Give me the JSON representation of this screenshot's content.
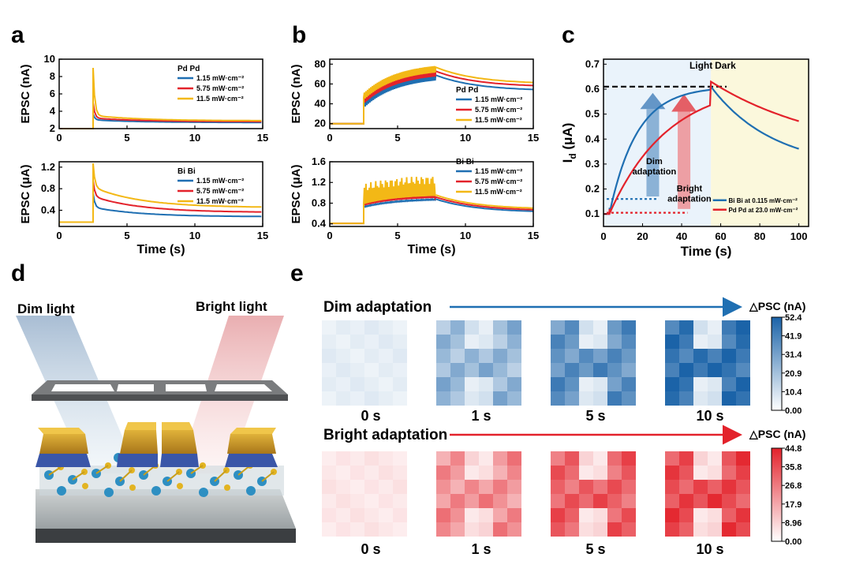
{
  "panels": {
    "a": "a",
    "b": "b",
    "c": "c",
    "d": "d",
    "e": "e"
  },
  "colors": {
    "blue": "#1f6fb2",
    "red": "#e3222b",
    "yellow": "#f3b816"
  },
  "chart_data": [
    {
      "id": "a-top",
      "type": "line",
      "xlim": [
        0,
        15
      ],
      "ylim": [
        2,
        10
      ],
      "xticks": [
        0,
        5,
        10,
        15
      ],
      "yticks": [
        2,
        4,
        6,
        8,
        10
      ],
      "ylabel": "EPSC (nA)",
      "xlabel": "",
      "legend_title": "Pd  Pd",
      "series": [
        {
          "name": "1.15 mW·cm⁻²",
          "pre": 1.95,
          "peak": 3.7,
          "plat": 3.0,
          "end": 2.7
        },
        {
          "name": "5.75 mW·cm⁻²",
          "pre": 1.95,
          "peak": 5.0,
          "plat": 3.2,
          "end": 2.8
        },
        {
          "name": "11.5 mW·cm⁻²",
          "pre": 1.95,
          "peak": 9.0,
          "plat": 3.5,
          "end": 2.9
        }
      ]
    },
    {
      "id": "a-bot",
      "type": "line",
      "xlim": [
        0,
        15
      ],
      "ylim": [
        0.1,
        1.3
      ],
      "xticks": [
        0,
        5,
        10,
        15
      ],
      "yticks": [
        0.4,
        0.8,
        1.2
      ],
      "ylabel": "EPSC (μA)",
      "xlabel": "Time (s)",
      "legend_title": "Bi  Bi",
      "series": [
        {
          "name": "1.15 mW·cm⁻²",
          "pre": 0.18,
          "peak": 0.72,
          "plat": 0.45,
          "end": 0.28
        },
        {
          "name": "5.75 mW·cm⁻²",
          "pre": 0.18,
          "peak": 0.95,
          "plat": 0.65,
          "end": 0.36
        },
        {
          "name": "11.5 mW·cm⁻²",
          "pre": 0.18,
          "peak": 1.27,
          "plat": 0.82,
          "end": 0.45
        }
      ]
    },
    {
      "id": "b-top",
      "type": "line",
      "xlim": [
        0,
        15
      ],
      "ylim": [
        15,
        85
      ],
      "xticks": [
        0,
        5,
        10,
        15
      ],
      "yticks": [
        20,
        40,
        60,
        80
      ],
      "ylabel": "EPSC (nA)",
      "xlabel": "",
      "legend_title": "Pd  Pd",
      "series": [
        {
          "name": "1.15 mW·cm⁻²",
          "pre": 20,
          "start": 38,
          "top": 69,
          "end": 53
        },
        {
          "name": "5.75 mW·cm⁻²",
          "pre": 20,
          "start": 42,
          "top": 73,
          "end": 57
        },
        {
          "name": "11.5 mW·cm⁻²",
          "pre": 20,
          "start": 46,
          "top": 77,
          "end": 60
        }
      ]
    },
    {
      "id": "b-bot",
      "type": "line",
      "xlim": [
        0,
        15
      ],
      "ylim": [
        0.35,
        1.6
      ],
      "xticks": [
        0,
        5,
        10,
        15
      ],
      "yticks": [
        0.4,
        0.8,
        1.2,
        1.6
      ],
      "ylabel": "EPSC (μA)",
      "xlabel": "Time (s)",
      "legend_title": "Bi  Bi",
      "series": [
        {
          "name": "1.15 mW·cm⁻²",
          "pre": 0.41,
          "start": 0.72,
          "top": 0.88,
          "end": 0.62,
          "spike": 0.9
        },
        {
          "name": "5.75 mW·cm⁻²",
          "pre": 0.41,
          "start": 0.75,
          "top": 0.92,
          "end": 0.65,
          "spike": 1.1
        },
        {
          "name": "11.5 mW·cm⁻²",
          "pre": 0.41,
          "start": 0.78,
          "top": 0.96,
          "end": 0.68,
          "spike": 1.35
        }
      ]
    },
    {
      "id": "c",
      "type": "line",
      "xlim": [
        0,
        105
      ],
      "ylim": [
        0.05,
        0.72
      ],
      "xticks": [
        0,
        20,
        40,
        60,
        80,
        100
      ],
      "yticks": [
        0.1,
        0.2,
        0.3,
        0.4,
        0.5,
        0.6,
        0.7
      ],
      "ylabel": "I",
      "ylabel_sub": "d",
      "ylabel_unit": " (μA)",
      "xlabel": "Time (s)",
      "region_labels": [
        "Light",
        "Dark"
      ],
      "arrow_labels": [
        [
          "Dim",
          "adaptation"
        ],
        [
          "Bright",
          "adaptation"
        ]
      ],
      "dashed_level": 0.61,
      "series": [
        {
          "name": "Bi Bi  at 0.115 mW·cm⁻²",
          "baseline": 0.16,
          "end": 0.35
        },
        {
          "name": "Pd Pd  at 23.0 mW·cm⁻²",
          "baseline": 0.105,
          "end": 0.43
        }
      ]
    }
  ],
  "panel_e": {
    "dim_title": "Dim adaptation",
    "bright_title": "Bright adaptation",
    "times": [
      "0 s",
      "1 s",
      "5 s",
      "10 s"
    ],
    "colorbar_title": "△PSC (nA)",
    "dim_scale": [
      "52.4",
      "41.9",
      "31.4",
      "20.9",
      "10.4",
      "0.00"
    ],
    "bright_scale": [
      "44.8",
      "35.8",
      "26.8",
      "17.9",
      "8.96",
      "0.00"
    ]
  },
  "panel_d": {
    "dim_label": "Dim light",
    "bright_label": "Bright light"
  }
}
